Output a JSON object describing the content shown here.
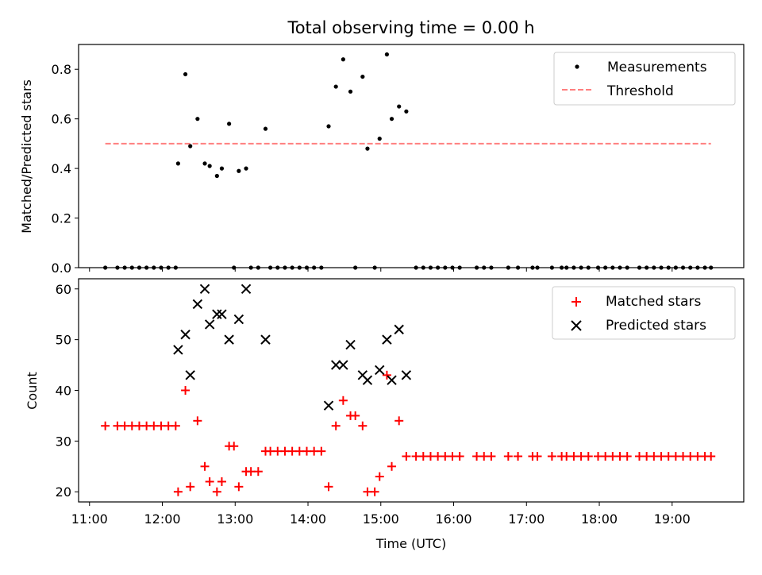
{
  "chart_data": [
    {
      "type": "scatter",
      "title": "Total observing time = 0.00 h",
      "ylabel": "Matched/Predicted stars",
      "xlabel": "",
      "ylim": [
        0,
        0.9
      ],
      "xlim": [
        "10:51",
        "19:59"
      ],
      "yticks": [
        "0.0",
        "0.2",
        "0.4",
        "0.6",
        "0.8"
      ],
      "legend": {
        "placement": "top-right",
        "entries": [
          "Measurements",
          "Threshold"
        ]
      },
      "threshold": {
        "name": "Threshold",
        "y": 0.5,
        "x_start": "11:13",
        "x_end": "19:32",
        "color": "#ff7f7f"
      },
      "series": [
        {
          "name": "Measurements",
          "color": "#000000",
          "points": [
            [
              "11:13",
              0
            ],
            [
              "11:23",
              0
            ],
            [
              "11:29",
              0
            ],
            [
              "11:35",
              0
            ],
            [
              "11:41",
              0
            ],
            [
              "11:47",
              0
            ],
            [
              "11:53",
              0
            ],
            [
              "11:59",
              0
            ],
            [
              "12:05",
              0
            ],
            [
              "12:11",
              0
            ],
            [
              "12:13",
              0.42
            ],
            [
              "12:19",
              0.78
            ],
            [
              "12:23",
              0.49
            ],
            [
              "12:29",
              0.6
            ],
            [
              "12:35",
              0.42
            ],
            [
              "12:39",
              0.41
            ],
            [
              "12:45",
              0.37
            ],
            [
              "12:49",
              0.4
            ],
            [
              "12:55",
              0.58
            ],
            [
              "12:59",
              0
            ],
            [
              "13:03",
              0.39
            ],
            [
              "13:09",
              0.4
            ],
            [
              "13:13",
              0
            ],
            [
              "13:19",
              0
            ],
            [
              "13:25",
              0.56
            ],
            [
              "13:29",
              0
            ],
            [
              "13:35",
              0
            ],
            [
              "13:41",
              0
            ],
            [
              "13:47",
              0
            ],
            [
              "13:53",
              0
            ],
            [
              "13:59",
              0
            ],
            [
              "14:05",
              0
            ],
            [
              "14:11",
              0
            ],
            [
              "14:17",
              0.57
            ],
            [
              "14:23",
              0.73
            ],
            [
              "14:29",
              0.84
            ],
            [
              "14:35",
              0.71
            ],
            [
              "14:39",
              0
            ],
            [
              "14:45",
              0.77
            ],
            [
              "14:49",
              0.48
            ],
            [
              "14:55",
              0
            ],
            [
              "14:59",
              0.52
            ],
            [
              "15:05",
              0.86
            ],
            [
              "15:09",
              0.6
            ],
            [
              "15:15",
              0.65
            ],
            [
              "15:21",
              0.63
            ],
            [
              "15:29",
              0
            ],
            [
              "15:35",
              0
            ],
            [
              "15:41",
              0
            ],
            [
              "15:47",
              0
            ],
            [
              "15:53",
              0
            ],
            [
              "15:59",
              0
            ],
            [
              "16:05",
              0
            ],
            [
              "16:19",
              0
            ],
            [
              "16:25",
              0
            ],
            [
              "16:31",
              0
            ],
            [
              "16:45",
              0
            ],
            [
              "16:53",
              0
            ],
            [
              "17:05",
              0
            ],
            [
              "17:09",
              0
            ],
            [
              "17:21",
              0
            ],
            [
              "17:29",
              0
            ],
            [
              "17:33",
              0
            ],
            [
              "17:39",
              0
            ],
            [
              "17:45",
              0
            ],
            [
              "17:51",
              0
            ],
            [
              "17:59",
              0
            ],
            [
              "18:05",
              0
            ],
            [
              "18:11",
              0
            ],
            [
              "18:17",
              0
            ],
            [
              "18:23",
              0
            ],
            [
              "18:33",
              0
            ],
            [
              "18:39",
              0
            ],
            [
              "18:45",
              0
            ],
            [
              "18:51",
              0
            ],
            [
              "18:57",
              0
            ],
            [
              "19:03",
              0
            ],
            [
              "19:09",
              0
            ],
            [
              "19:15",
              0
            ],
            [
              "19:21",
              0
            ],
            [
              "19:27",
              0
            ],
            [
              "19:32",
              0
            ]
          ]
        }
      ]
    },
    {
      "type": "scatter",
      "title": "",
      "xlabel": "Time (UTC)",
      "ylabel": "Count",
      "ylim": [
        18,
        62
      ],
      "xlim": [
        "10:51",
        "19:59"
      ],
      "yticks": [
        "20",
        "30",
        "40",
        "50",
        "60"
      ],
      "xticks": [
        "11:00",
        "12:00",
        "13:00",
        "14:00",
        "15:00",
        "16:00",
        "17:00",
        "18:00",
        "19:00"
      ],
      "legend": {
        "placement": "top-right",
        "entries": [
          "Matched stars",
          "Predicted stars"
        ]
      },
      "series": [
        {
          "name": "Matched stars",
          "marker": "plus",
          "color": "#ff0000",
          "points": [
            [
              "11:13",
              33
            ],
            [
              "11:23",
              33
            ],
            [
              "11:29",
              33
            ],
            [
              "11:35",
              33
            ],
            [
              "11:41",
              33
            ],
            [
              "11:47",
              33
            ],
            [
              "11:53",
              33
            ],
            [
              "11:59",
              33
            ],
            [
              "12:05",
              33
            ],
            [
              "12:11",
              33
            ],
            [
              "12:13",
              20
            ],
            [
              "12:19",
              40
            ],
            [
              "12:23",
              21
            ],
            [
              "12:29",
              34
            ],
            [
              "12:35",
              25
            ],
            [
              "12:39",
              22
            ],
            [
              "12:45",
              20
            ],
            [
              "12:49",
              22
            ],
            [
              "12:55",
              29
            ],
            [
              "12:59",
              29
            ],
            [
              "13:03",
              21
            ],
            [
              "13:09",
              24
            ],
            [
              "13:13",
              24
            ],
            [
              "13:19",
              24
            ],
            [
              "13:25",
              28
            ],
            [
              "13:29",
              28
            ],
            [
              "13:35",
              28
            ],
            [
              "13:41",
              28
            ],
            [
              "13:47",
              28
            ],
            [
              "13:53",
              28
            ],
            [
              "13:59",
              28
            ],
            [
              "14:05",
              28
            ],
            [
              "14:11",
              28
            ],
            [
              "14:17",
              21
            ],
            [
              "14:23",
              33
            ],
            [
              "14:29",
              38
            ],
            [
              "14:35",
              35
            ],
            [
              "14:39",
              35
            ],
            [
              "14:45",
              33
            ],
            [
              "14:49",
              20
            ],
            [
              "14:55",
              20
            ],
            [
              "14:59",
              23
            ],
            [
              "15:05",
              43
            ],
            [
              "15:09",
              25
            ],
            [
              "15:15",
              34
            ],
            [
              "15:21",
              27
            ],
            [
              "15:29",
              27
            ],
            [
              "15:35",
              27
            ],
            [
              "15:41",
              27
            ],
            [
              "15:47",
              27
            ],
            [
              "15:53",
              27
            ],
            [
              "15:59",
              27
            ],
            [
              "16:05",
              27
            ],
            [
              "16:19",
              27
            ],
            [
              "16:25",
              27
            ],
            [
              "16:31",
              27
            ],
            [
              "16:45",
              27
            ],
            [
              "16:53",
              27
            ],
            [
              "17:05",
              27
            ],
            [
              "17:09",
              27
            ],
            [
              "17:21",
              27
            ],
            [
              "17:29",
              27
            ],
            [
              "17:33",
              27
            ],
            [
              "17:39",
              27
            ],
            [
              "17:45",
              27
            ],
            [
              "17:51",
              27
            ],
            [
              "17:59",
              27
            ],
            [
              "18:05",
              27
            ],
            [
              "18:11",
              27
            ],
            [
              "18:17",
              27
            ],
            [
              "18:23",
              27
            ],
            [
              "18:33",
              27
            ],
            [
              "18:39",
              27
            ],
            [
              "18:45",
              27
            ],
            [
              "18:51",
              27
            ],
            [
              "18:57",
              27
            ],
            [
              "19:03",
              27
            ],
            [
              "19:09",
              27
            ],
            [
              "19:15",
              27
            ],
            [
              "19:21",
              27
            ],
            [
              "19:27",
              27
            ],
            [
              "19:32",
              27
            ]
          ]
        },
        {
          "name": "Predicted stars",
          "marker": "x",
          "color": "#000000",
          "points": [
            [
              "12:13",
              48
            ],
            [
              "12:19",
              51
            ],
            [
              "12:23",
              43
            ],
            [
              "12:29",
              57
            ],
            [
              "12:35",
              60
            ],
            [
              "12:39",
              53
            ],
            [
              "12:45",
              55
            ],
            [
              "12:49",
              55
            ],
            [
              "12:55",
              50
            ],
            [
              "13:03",
              54
            ],
            [
              "13:09",
              60
            ],
            [
              "13:25",
              50
            ],
            [
              "14:17",
              37
            ],
            [
              "14:23",
              45
            ],
            [
              "14:29",
              45
            ],
            [
              "14:35",
              49
            ],
            [
              "14:45",
              43
            ],
            [
              "14:49",
              42
            ],
            [
              "14:59",
              44
            ],
            [
              "15:05",
              50
            ],
            [
              "15:09",
              42
            ],
            [
              "15:15",
              52
            ],
            [
              "15:21",
              43
            ]
          ]
        }
      ]
    }
  ]
}
